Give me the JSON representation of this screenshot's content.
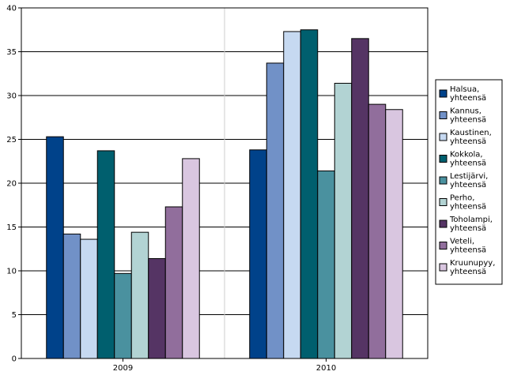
{
  "chart_data": {
    "type": "bar",
    "categories": [
      "2009",
      "2010"
    ],
    "series": [
      {
        "name": "Halsua, yhteensä",
        "color": "#00428a",
        "values": [
          25.3,
          23.8
        ]
      },
      {
        "name": "Kannus, yhteensä",
        "color": "#7191c7",
        "values": [
          14.2,
          33.7
        ]
      },
      {
        "name": "Kaustinen, yhteensä",
        "color": "#c6d9f1",
        "values": [
          13.6,
          37.3
        ]
      },
      {
        "name": "Kokkola, yhteensä",
        "color": "#005f6e",
        "values": [
          23.7,
          37.5
        ]
      },
      {
        "name": "Lestijärvi, yhteensä",
        "color": "#4a919f",
        "values": [
          9.7,
          21.4
        ]
      },
      {
        "name": "Perho, yhteensä",
        "color": "#b2d3d3",
        "values": [
          14.4,
          31.4
        ]
      },
      {
        "name": "Toholampi, yhteensä",
        "color": "#553464",
        "values": [
          11.4,
          36.5
        ]
      },
      {
        "name": "Veteli, yhteensä",
        "color": "#916e9c",
        "values": [
          17.3,
          29.0
        ]
      },
      {
        "name": "Kruunupyy, yhteensä",
        "color": "#d9c6e0",
        "values": [
          22.8,
          28.4
        ]
      }
    ],
    "title": "",
    "xlabel": "",
    "ylabel": "",
    "ylim": [
      0,
      40
    ],
    "yticks": [
      0,
      5,
      10,
      15,
      20,
      25,
      30,
      35,
      40
    ],
    "grid": true,
    "legend_position": "right"
  }
}
